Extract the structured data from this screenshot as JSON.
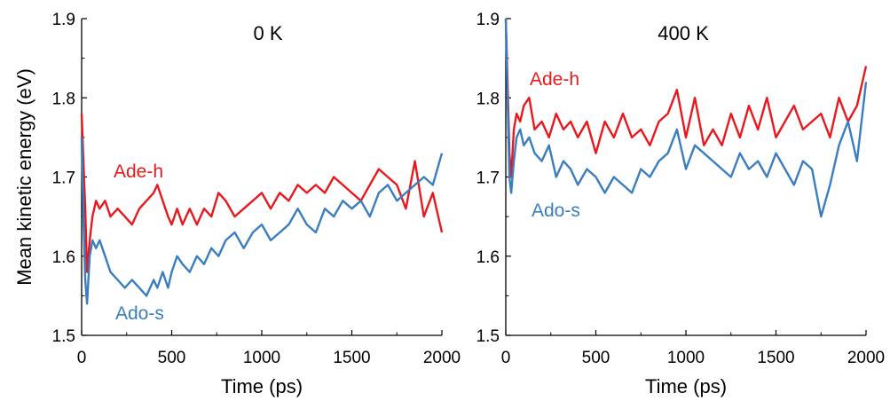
{
  "chart_data": [
    {
      "type": "line",
      "title": "0 K",
      "xlabel": "Time (ps)",
      "ylabel": "Mean kinetic energy (eV)",
      "xlim": [
        0,
        2000
      ],
      "ylim": [
        1.5,
        1.9
      ],
      "xticks": [
        "0",
        "500",
        "1000",
        "1500",
        "2000"
      ],
      "yticks": [
        "1.5",
        "1.6",
        "1.7",
        "1.8",
        "1.9"
      ],
      "grid": false,
      "series": [
        {
          "name": "Ade-h",
          "color": "#e8191e",
          "x": [
            0,
            10,
            20,
            30,
            45,
            60,
            80,
            100,
            130,
            160,
            200,
            240,
            280,
            320,
            360,
            400,
            420,
            450,
            480,
            500,
            530,
            560,
            600,
            640,
            680,
            720,
            760,
            800,
            850,
            900,
            950,
            1000,
            1050,
            1100,
            1150,
            1200,
            1250,
            1300,
            1350,
            1400,
            1450,
            1500,
            1550,
            1600,
            1650,
            1700,
            1750,
            1800,
            1850,
            1900,
            1950,
            2000
          ],
          "y": [
            1.78,
            1.72,
            1.66,
            1.58,
            1.62,
            1.65,
            1.67,
            1.66,
            1.67,
            1.65,
            1.66,
            1.65,
            1.64,
            1.66,
            1.67,
            1.68,
            1.69,
            1.67,
            1.65,
            1.64,
            1.66,
            1.64,
            1.66,
            1.64,
            1.66,
            1.65,
            1.68,
            1.67,
            1.65,
            1.66,
            1.67,
            1.68,
            1.66,
            1.68,
            1.67,
            1.69,
            1.68,
            1.69,
            1.68,
            1.7,
            1.69,
            1.68,
            1.67,
            1.69,
            1.71,
            1.7,
            1.69,
            1.66,
            1.72,
            1.65,
            1.68,
            1.63
          ]
        },
        {
          "name": "Ado-s",
          "color": "#3a7ec0",
          "x": [
            0,
            10,
            20,
            30,
            45,
            60,
            80,
            100,
            130,
            160,
            200,
            240,
            280,
            320,
            360,
            400,
            420,
            450,
            480,
            500,
            530,
            560,
            600,
            640,
            680,
            720,
            760,
            800,
            850,
            900,
            950,
            1000,
            1050,
            1100,
            1150,
            1200,
            1250,
            1300,
            1350,
            1400,
            1450,
            1500,
            1550,
            1600,
            1650,
            1700,
            1750,
            1800,
            1850,
            1900,
            1950,
            2000
          ],
          "y": [
            1.75,
            1.65,
            1.57,
            1.54,
            1.6,
            1.62,
            1.61,
            1.62,
            1.6,
            1.58,
            1.57,
            1.56,
            1.57,
            1.56,
            1.55,
            1.57,
            1.56,
            1.58,
            1.56,
            1.58,
            1.6,
            1.59,
            1.58,
            1.6,
            1.59,
            1.61,
            1.6,
            1.62,
            1.63,
            1.61,
            1.63,
            1.64,
            1.62,
            1.63,
            1.64,
            1.66,
            1.64,
            1.63,
            1.66,
            1.65,
            1.67,
            1.66,
            1.67,
            1.65,
            1.68,
            1.69,
            1.67,
            1.68,
            1.69,
            1.7,
            1.69,
            1.73
          ]
        }
      ],
      "annotations": [
        "Ade-h",
        "Ado-s"
      ]
    },
    {
      "type": "line",
      "title": "400 K",
      "xlabel": "Time (ps)",
      "ylabel": "",
      "xlim": [
        0,
        2000
      ],
      "ylim": [
        1.5,
        1.9
      ],
      "xticks": [
        "0",
        "500",
        "1000",
        "1500",
        "2000"
      ],
      "yticks": [
        "1.5",
        "1.6",
        "1.7",
        "1.8",
        "1.9"
      ],
      "grid": false,
      "series": [
        {
          "name": "Ade-h",
          "color": "#e8191e",
          "x": [
            0,
            10,
            20,
            30,
            45,
            60,
            80,
            100,
            130,
            160,
            200,
            240,
            280,
            320,
            360,
            400,
            450,
            500,
            550,
            600,
            650,
            700,
            750,
            800,
            850,
            900,
            950,
            1000,
            1050,
            1100,
            1150,
            1200,
            1250,
            1300,
            1350,
            1400,
            1450,
            1500,
            1550,
            1600,
            1650,
            1700,
            1750,
            1800,
            1850,
            1900,
            1950,
            2000
          ],
          "y": [
            1.9,
            1.82,
            1.73,
            1.7,
            1.76,
            1.78,
            1.77,
            1.79,
            1.8,
            1.76,
            1.77,
            1.75,
            1.78,
            1.76,
            1.77,
            1.75,
            1.77,
            1.73,
            1.77,
            1.75,
            1.78,
            1.75,
            1.76,
            1.74,
            1.77,
            1.78,
            1.81,
            1.75,
            1.8,
            1.74,
            1.76,
            1.74,
            1.78,
            1.75,
            1.79,
            1.76,
            1.8,
            1.75,
            1.77,
            1.79,
            1.76,
            1.77,
            1.78,
            1.75,
            1.8,
            1.77,
            1.79,
            1.84
          ]
        },
        {
          "name": "Ado-s",
          "color": "#3a7ec0",
          "x": [
            0,
            10,
            20,
            30,
            45,
            60,
            80,
            100,
            130,
            160,
            200,
            240,
            280,
            320,
            360,
            400,
            450,
            500,
            550,
            600,
            650,
            700,
            750,
            800,
            850,
            900,
            950,
            1000,
            1050,
            1100,
            1150,
            1200,
            1250,
            1300,
            1350,
            1400,
            1450,
            1500,
            1550,
            1600,
            1650,
            1700,
            1750,
            1800,
            1850,
            1900,
            1950,
            2000
          ],
          "y": [
            1.9,
            1.8,
            1.7,
            1.68,
            1.72,
            1.75,
            1.76,
            1.74,
            1.75,
            1.73,
            1.72,
            1.74,
            1.7,
            1.72,
            1.71,
            1.69,
            1.71,
            1.7,
            1.68,
            1.7,
            1.69,
            1.68,
            1.71,
            1.7,
            1.72,
            1.73,
            1.76,
            1.71,
            1.74,
            1.73,
            1.72,
            1.71,
            1.7,
            1.73,
            1.71,
            1.72,
            1.7,
            1.73,
            1.71,
            1.69,
            1.72,
            1.71,
            1.65,
            1.69,
            1.74,
            1.77,
            1.72,
            1.82
          ]
        }
      ],
      "annotations": [
        "Ade-h",
        "Ado-s"
      ]
    }
  ]
}
